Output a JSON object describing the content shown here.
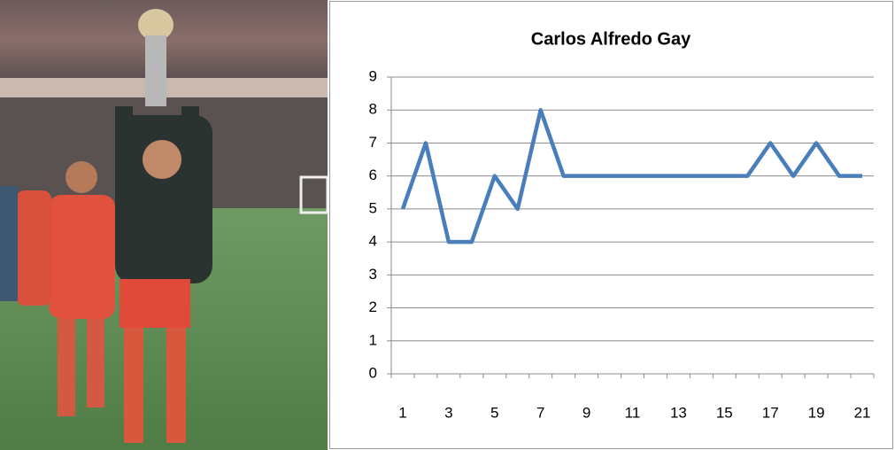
{
  "chart_data": {
    "type": "line",
    "title": "Carlos Alfredo Gay",
    "categories": [
      1,
      null,
      3,
      null,
      5,
      null,
      7,
      null,
      9,
      null,
      11,
      null,
      13,
      null,
      15,
      null,
      17,
      null,
      19,
      null,
      21
    ],
    "values": [
      5,
      7,
      4,
      4,
      6,
      5,
      8,
      6,
      6,
      6,
      6,
      6,
      6,
      6,
      6,
      6,
      7,
      6,
      7,
      6,
      6
    ],
    "color": "#4a7ebb",
    "ylim": [
      0,
      9
    ],
    "yticks": [
      0,
      1,
      2,
      3,
      4,
      5,
      6,
      7,
      8,
      9
    ],
    "grid": true
  }
}
